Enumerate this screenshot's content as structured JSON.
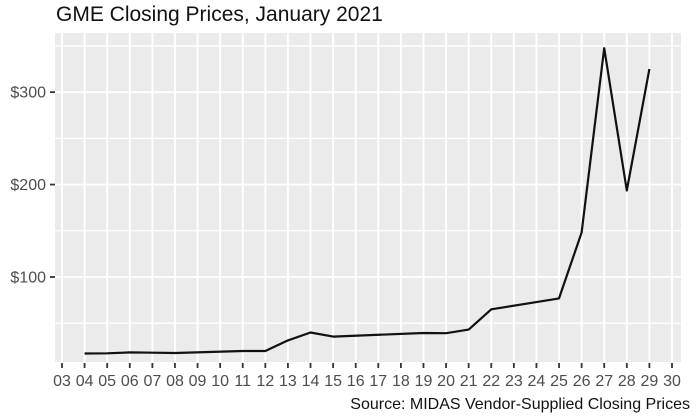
{
  "chart": {
    "title": "GME Closing Prices, January 2021",
    "caption": "Source: MIDAS Vendor-Supplied Closing Prices"
  },
  "chart_data": {
    "type": "line",
    "title": "GME Closing Prices, January 2021",
    "caption": "Source: MIDAS Vendor-Supplied Closing Prices",
    "xlabel": "",
    "ylabel": "",
    "x_axis": {
      "domain": [
        3,
        30
      ],
      "tick_days": [
        3,
        4,
        5,
        6,
        7,
        8,
        9,
        10,
        11,
        12,
        13,
        14,
        15,
        16,
        17,
        18,
        19,
        20,
        21,
        22,
        23,
        24,
        25,
        26,
        27,
        28,
        29,
        30
      ],
      "tick_labels": [
        "03",
        "04",
        "05",
        "06",
        "07",
        "08",
        "09",
        "10",
        "11",
        "12",
        "13",
        "14",
        "15",
        "16",
        "17",
        "18",
        "19",
        "20",
        "21",
        "22",
        "23",
        "24",
        "25",
        "26",
        "27",
        "28",
        "29",
        "30"
      ]
    },
    "y_axis": {
      "domain": [
        8,
        364
      ],
      "tick_values": [
        100,
        200,
        300
      ],
      "tick_labels": [
        "$100",
        "$200",
        "$300"
      ],
      "minor_tick_values": [
        50,
        150,
        250,
        350
      ]
    },
    "series": [
      {
        "name": "GME closing price",
        "color": "#111111",
        "days": [
          4,
          5,
          6,
          7,
          8,
          11,
          12,
          13,
          14,
          15,
          19,
          20,
          21,
          22,
          25,
          26,
          27,
          28,
          29
        ],
        "values": [
          17.25,
          17.37,
          18.36,
          18.08,
          17.69,
          19.94,
          19.95,
          31.4,
          39.91,
          35.5,
          39.36,
          39.12,
          43.03,
          65.01,
          76.79,
          147.98,
          347.51,
          193.6,
          325.0
        ]
      }
    ],
    "style": {
      "panel_background": "#EBEBEB",
      "grid_color": "#FFFFFF",
      "axis_text_color": "#4D4D4D",
      "tick_color": "#333333",
      "line_color": "#111111",
      "title_color": "#111111",
      "caption_color": "#111111"
    },
    "legend": "none",
    "grid": "on"
  }
}
